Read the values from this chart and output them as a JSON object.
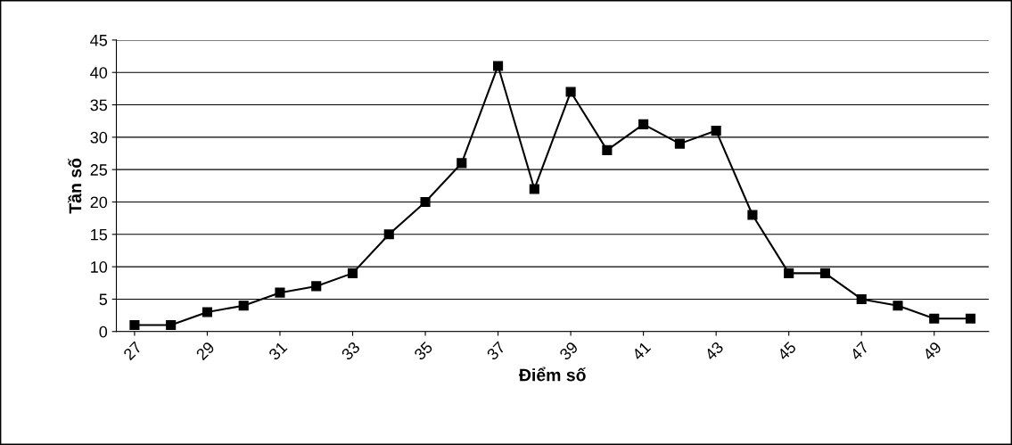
{
  "chart_data": {
    "type": "line",
    "xlabel": "Điểm số",
    "ylabel": "Tần số",
    "categories": [
      "27",
      null,
      "29",
      null,
      "31",
      null,
      "33",
      null,
      "35",
      null,
      "37",
      null,
      "39",
      null,
      "41",
      null,
      "43",
      null,
      "45",
      null,
      "47",
      null,
      "49",
      null
    ],
    "series": [
      {
        "color": "#000000",
        "values": [
          1,
          1,
          3,
          4,
          6,
          7,
          9,
          15,
          20,
          26,
          41,
          22,
          37,
          28,
          32,
          29,
          31,
          18,
          9,
          9,
          5,
          4,
          2,
          2
        ]
      }
    ],
    "ylim": [
      0,
      45
    ],
    "yticks": [
      0,
      5,
      10,
      15,
      20,
      25,
      30,
      35,
      40,
      45
    ],
    "grid": "y",
    "marker": "square",
    "line_style": "solid"
  }
}
